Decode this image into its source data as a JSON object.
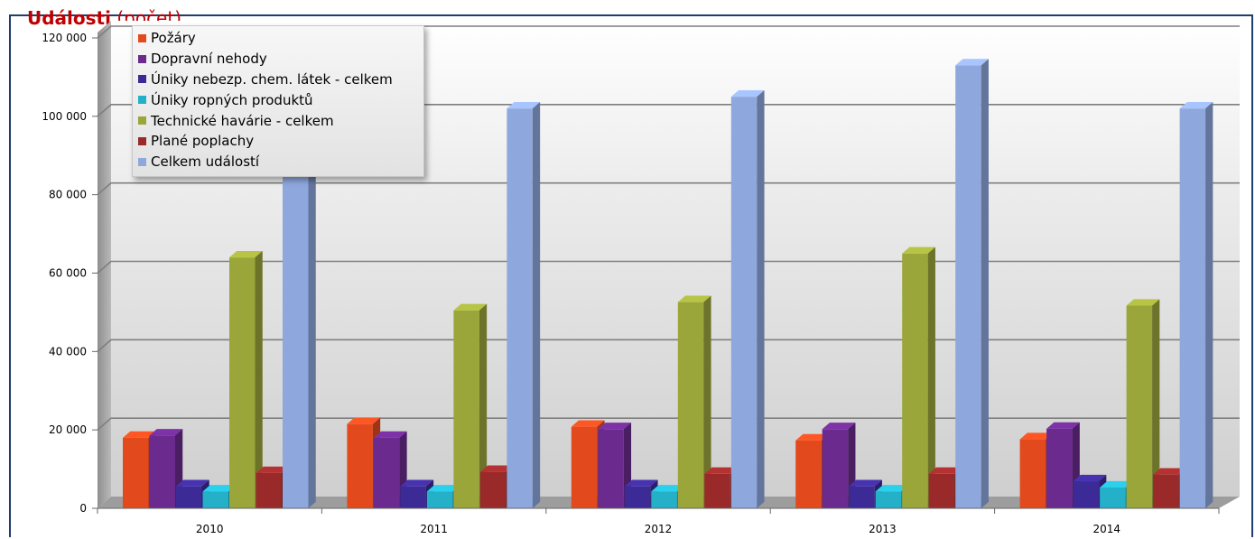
{
  "title": {
    "main": "Události",
    "unit": "(počet)"
  },
  "chart_data": {
    "type": "bar",
    "categories": [
      "2010",
      "2011",
      "2012",
      "2013",
      "2014"
    ],
    "ylim": [
      0,
      120000
    ],
    "yticks": [
      "0",
      "20 000",
      "40 000",
      "60 000",
      "80 000",
      "100 000",
      "120 000"
    ],
    "grid": true,
    "legend_position": "top-left",
    "series": [
      {
        "name": "Požáry",
        "color": "#e24a1e",
        "values": [
          18000,
          21500,
          20800,
          17300,
          17600
        ]
      },
      {
        "name": "Dopravní nehody",
        "color": "#6b2a8e",
        "values": [
          18600,
          18000,
          20200,
          20200,
          20300
        ]
      },
      {
        "name": "Úniky nebezp. chem. látek - celkem",
        "color": "#3c2a96",
        "values": [
          5600,
          5600,
          5600,
          5600,
          6900
        ]
      },
      {
        "name": "Úniky ropných produktů",
        "color": "#24b0c8",
        "values": [
          4300,
          4300,
          4300,
          4300,
          5300
        ]
      },
      {
        "name": "Technické havárie - celkem",
        "color": "#9ba63a",
        "values": [
          64000,
          50500,
          52600,
          65000,
          51700
        ]
      },
      {
        "name": "Plané poplachy",
        "color": "#9a2a2a",
        "values": [
          9000,
          9300,
          8800,
          8800,
          8600
        ]
      },
      {
        "name": "Celkem událostí",
        "color": "#8ea7dd",
        "values": [
          113000,
          102000,
          105000,
          113000,
          102000
        ]
      }
    ]
  }
}
